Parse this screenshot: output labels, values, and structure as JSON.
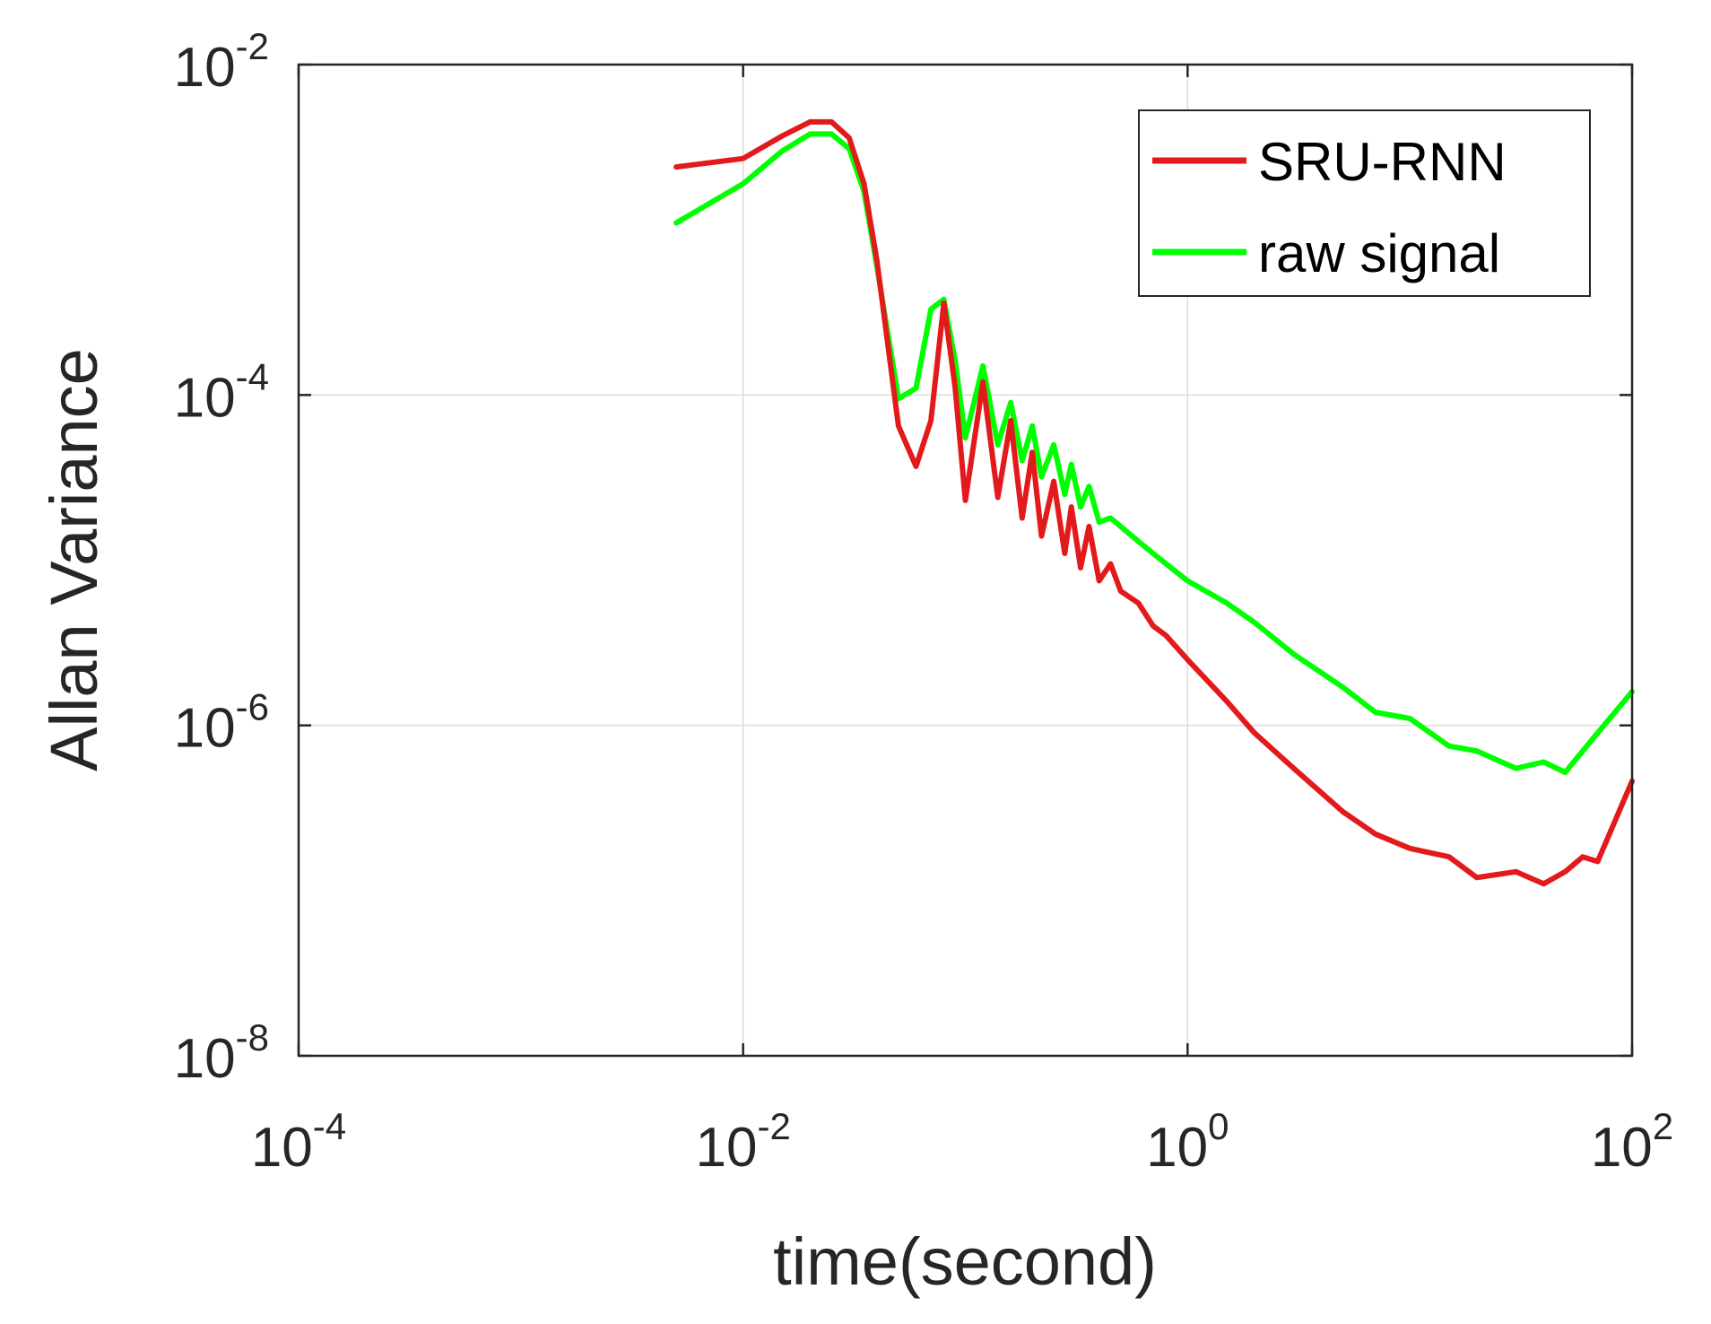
{
  "chart_data": {
    "type": "line",
    "title": "",
    "xlabel": "time(second)",
    "ylabel": "Allan Variance",
    "xscale": "log",
    "yscale": "log",
    "xlim": [
      0.0001,
      100
    ],
    "ylim": [
      1e-08,
      0.01
    ],
    "grid": true,
    "legend_position": "top-right",
    "x_ticks": [
      {
        "base": "10",
        "exp": "-4",
        "value": 0.0001
      },
      {
        "base": "10",
        "exp": "-2",
        "value": 0.01
      },
      {
        "base": "10",
        "exp": "0",
        "value": 1
      },
      {
        "base": "10",
        "exp": "2",
        "value": 100
      }
    ],
    "y_ticks": [
      {
        "base": "10",
        "exp": "-2",
        "value": 0.01
      },
      {
        "base": "10",
        "exp": "-4",
        "value": 0.0001
      },
      {
        "base": "10",
        "exp": "-6",
        "value": 1e-06
      },
      {
        "base": "10",
        "exp": "-8",
        "value": 1e-08
      }
    ],
    "series": [
      {
        "name": "SRU-RNN",
        "color": "#e31a1c",
        "x": [
          0.005,
          0.01,
          0.015,
          0.02,
          0.025,
          0.03,
          0.035,
          0.04,
          0.05,
          0.06,
          0.07,
          0.08,
          0.09,
          0.1,
          0.12,
          0.14,
          0.16,
          0.18,
          0.2,
          0.22,
          0.25,
          0.28,
          0.3,
          0.33,
          0.36,
          0.4,
          0.45,
          0.5,
          0.6,
          0.7,
          0.8,
          1,
          1.5,
          2,
          3,
          5,
          7,
          10,
          15,
          20,
          30,
          40,
          50,
          60,
          70,
          100
        ],
        "y": [
          0.0024,
          0.0027,
          0.0037,
          0.0045,
          0.0045,
          0.0036,
          0.0019,
          0.00065,
          6.5e-05,
          3.7e-05,
          7e-05,
          0.00036,
          0.00011,
          2.3e-05,
          0.00012,
          2.4e-05,
          7e-05,
          1.8e-05,
          4.5e-05,
          1.4e-05,
          3e-05,
          1.1e-05,
          2.1e-05,
          9e-06,
          1.6e-05,
          7.5e-06,
          9.5e-06,
          6.5e-06,
          5.5e-06,
          4e-06,
          3.5e-06,
          2.5e-06,
          1.4e-06,
          9e-07,
          5.5e-07,
          3e-07,
          2.2e-07,
          1.8e-07,
          1.6e-07,
          1.2e-07,
          1.3e-07,
          1.1e-07,
          1.3e-07,
          1.6e-07,
          1.5e-07,
          4.6e-07
        ]
      },
      {
        "name": "raw signal",
        "color": "#00ff00",
        "x": [
          0.005,
          0.01,
          0.015,
          0.02,
          0.025,
          0.03,
          0.035,
          0.04,
          0.05,
          0.06,
          0.07,
          0.08,
          0.09,
          0.1,
          0.12,
          0.14,
          0.16,
          0.18,
          0.2,
          0.22,
          0.25,
          0.28,
          0.3,
          0.33,
          0.36,
          0.4,
          0.45,
          0.5,
          0.6,
          0.7,
          0.8,
          1,
          1.5,
          2,
          3,
          5,
          7,
          10,
          15,
          20,
          30,
          40,
          50,
          60,
          70,
          100
        ],
        "y": [
          0.0011,
          0.0019,
          0.003,
          0.0038,
          0.0038,
          0.0031,
          0.0017,
          0.0006,
          9.5e-05,
          0.00011,
          0.00033,
          0.00038,
          0.00016,
          5.5e-05,
          0.00015,
          5e-05,
          9e-05,
          4e-05,
          6.5e-05,
          3.2e-05,
          5e-05,
          2.5e-05,
          3.8e-05,
          2.1e-05,
          2.8e-05,
          1.7e-05,
          1.8e-05,
          1.6e-05,
          1.3e-05,
          1.1e-05,
          9.5e-06,
          7.5e-06,
          5.5e-06,
          4.2e-06,
          2.7e-06,
          1.7e-06,
          1.2e-06,
          1.1e-06,
          7.5e-07,
          7e-07,
          5.5e-07,
          6e-07,
          5.2e-07,
          7e-07,
          9e-07,
          1.6e-06
        ]
      }
    ]
  }
}
